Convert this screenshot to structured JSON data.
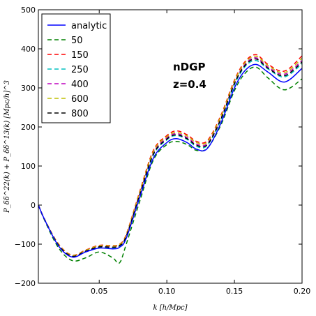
{
  "chart_data": {
    "type": "line",
    "xlabel": "k [h/Mpc]",
    "ylabel": "P_δδ^22(k) + P_δδ^13(k) [Mpc/h]^3",
    "xlim": [
      0.005,
      0.2
    ],
    "ylim": [
      -200,
      500
    ],
    "xticks": [
      0.05,
      0.1,
      0.15,
      0.2
    ],
    "xtick_labels": [
      "0.05",
      "0.10",
      "0.15",
      "0.20"
    ],
    "yticks": [
      -200,
      -100,
      0,
      100,
      200,
      300,
      400,
      500
    ],
    "ytick_labels": [
      "−200",
      "−100",
      "0",
      "100",
      "200",
      "300",
      "400",
      "500"
    ],
    "grid": false,
    "legend_position": "top-left",
    "annotations": [
      "nDGP",
      "z=0.4"
    ],
    "x": [
      0.005,
      0.01,
      0.02,
      0.03,
      0.04,
      0.05,
      0.06,
      0.065,
      0.07,
      0.08,
      0.09,
      0.1,
      0.107,
      0.115,
      0.122,
      0.13,
      0.14,
      0.15,
      0.158,
      0.166,
      0.175,
      0.187,
      0.2
    ],
    "series": [
      {
        "name": "analytic",
        "color": "#0000ff",
        "dash": "solid",
        "values": [
          0,
          -40,
          -105,
          -133,
          -120,
          -110,
          -112,
          -108,
          -85,
          20,
          120,
          160,
          170,
          160,
          143,
          145,
          210,
          300,
          345,
          360,
          340,
          315,
          350
        ]
      },
      {
        "name": "50",
        "color": "#008000",
        "dash": "dashed",
        "values": [
          0,
          -42,
          -110,
          -142,
          -135,
          -120,
          -135,
          -148,
          -100,
          10,
          115,
          155,
          163,
          155,
          140,
          146,
          205,
          293,
          338,
          353,
          325,
          295,
          323
        ]
      },
      {
        "name": "150",
        "color": "#ff0000",
        "dash": "dashed",
        "values": [
          0,
          -39,
          -100,
          -128,
          -115,
          -103,
          -104,
          -100,
          -75,
          35,
          140,
          178,
          190,
          180,
          163,
          165,
          230,
          320,
          368,
          385,
          360,
          343,
          382
        ]
      },
      {
        "name": "250",
        "color": "#00bfbf",
        "dash": "dashed",
        "values": [
          0,
          -40,
          -104,
          -132,
          -119,
          -108,
          -109,
          -105,
          -82,
          25,
          128,
          167,
          178,
          168,
          150,
          153,
          218,
          308,
          355,
          370,
          348,
          328,
          362
        ]
      },
      {
        "name": "400",
        "color": "#bf00bf",
        "dash": "dashed",
        "values": [
          0,
          -39,
          -102,
          -130,
          -117,
          -106,
          -107,
          -103,
          -79,
          29,
          133,
          172,
          183,
          173,
          156,
          158,
          223,
          313,
          361,
          377,
          353,
          335,
          370
        ]
      },
      {
        "name": "600",
        "color": "#bfbf00",
        "dash": "dashed",
        "values": [
          0,
          -39,
          -101,
          -129,
          -116,
          -104,
          -105,
          -101,
          -77,
          32,
          137,
          175,
          186,
          177,
          160,
          162,
          227,
          317,
          365,
          381,
          357,
          339,
          376
        ]
      },
      {
        "name": "800",
        "color": "#000000",
        "dash": "dashed",
        "values": [
          0,
          -40,
          -103,
          -131,
          -118,
          -107,
          -108,
          -104,
          -80,
          27,
          130,
          169,
          180,
          170,
          153,
          155,
          220,
          311,
          358,
          374,
          350,
          331,
          366
        ]
      }
    ]
  }
}
